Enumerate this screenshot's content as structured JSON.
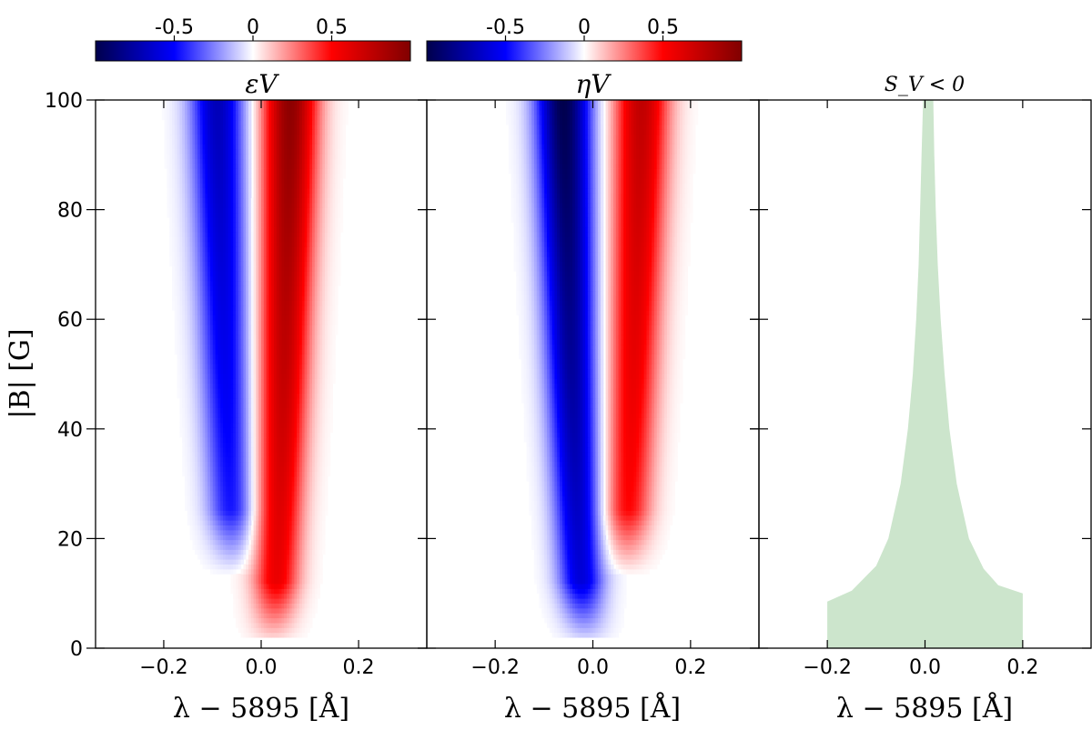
{
  "chart_data": [
    {
      "type": "heatmap",
      "title": "εV",
      "xlabel": "λ − 5895 [Å]",
      "ylabel": "|B| [G]",
      "xlim": [
        -0.34,
        0.34
      ],
      "ylim": [
        0,
        100
      ],
      "x_ticks": [
        -0.2,
        0.0,
        0.2
      ],
      "x_tick_labels": [
        "−0.2",
        "0.0",
        "0.2"
      ],
      "y_ticks": [
        0,
        20,
        40,
        60,
        80,
        100
      ],
      "y_tick_labels": [
        "0",
        "20",
        "40",
        "60",
        "80",
        "100"
      ],
      "data_field_range_B": [
        2,
        100
      ],
      "colorscale": "seismic",
      "colorbar": {
        "range": [
          -1,
          1
        ],
        "ticks": [
          -0.5,
          0,
          0.5
        ],
        "tick_labels": [
          "-0.5",
          "0",
          "0.5"
        ],
        "colors": [
          "#00004c",
          "#0000ff",
          "#ffffff",
          "#ff0000",
          "#800000"
        ]
      },
      "features": [
        {
          "polarity": "negative",
          "x_center": -0.09,
          "x_center_at_low_B": -0.04,
          "peak": -0.7,
          "visible_from_B": 15
        },
        {
          "polarity": "positive",
          "x_center": 0.06,
          "x_center_at_low_B": 0.02,
          "peak": 0.95,
          "visible_from_B": 2
        }
      ]
    },
    {
      "type": "heatmap",
      "title": "ηV",
      "xlabel": "λ − 5895 [Å]",
      "xlim": [
        -0.34,
        0.34
      ],
      "ylim": [
        0,
        100
      ],
      "x_ticks": [
        -0.2,
        0.0,
        0.2
      ],
      "x_tick_labels": [
        "−0.2",
        "0.0",
        "0.2"
      ],
      "data_field_range_B": [
        2,
        100
      ],
      "colorscale": "seismic",
      "colorbar": {
        "range": [
          -1,
          1
        ],
        "ticks": [
          -0.5,
          0,
          0.5
        ],
        "tick_labels": [
          "-0.5",
          "0",
          "0.5"
        ],
        "colors": [
          "#00004c",
          "#0000ff",
          "#ffffff",
          "#ff0000",
          "#800000"
        ]
      },
      "features": [
        {
          "polarity": "negative",
          "x_center": -0.06,
          "x_center_at_low_B": -0.01,
          "peak": -1.0,
          "visible_from_B": 2
        },
        {
          "polarity": "positive",
          "x_center": 0.1,
          "x_center_at_low_B": 0.05,
          "peak": 0.75,
          "visible_from_B": 15
        }
      ]
    },
    {
      "type": "area",
      "title": "S_V < 0",
      "xlabel": "λ − 5895 [Å]",
      "xlim": [
        -0.34,
        0.34
      ],
      "ylim": [
        0,
        100
      ],
      "x_ticks": [
        -0.2,
        0.0,
        0.2
      ],
      "x_tick_labels": [
        "−0.2",
        "0.0",
        "0.2"
      ],
      "fill_color": "#cce5cc",
      "region_outline": [
        [
          -0.2,
          0
        ],
        [
          -0.2,
          8.5
        ],
        [
          -0.15,
          10.5
        ],
        [
          -0.1,
          15
        ],
        [
          -0.075,
          20
        ],
        [
          -0.05,
          30
        ],
        [
          -0.035,
          40
        ],
        [
          -0.025,
          50
        ],
        [
          -0.018,
          60
        ],
        [
          -0.013,
          70
        ],
        [
          -0.01,
          80
        ],
        [
          -0.007,
          90
        ],
        [
          -0.004,
          100
        ],
        [
          0.017,
          100
        ],
        [
          0.019,
          90
        ],
        [
          0.022,
          80
        ],
        [
          0.026,
          70
        ],
        [
          0.032,
          60
        ],
        [
          0.04,
          50
        ],
        [
          0.05,
          40
        ],
        [
          0.065,
          30
        ],
        [
          0.09,
          20
        ],
        [
          0.12,
          14.5
        ],
        [
          0.15,
          11.5
        ],
        [
          0.2,
          10
        ],
        [
          0.2,
          0
        ]
      ]
    }
  ]
}
